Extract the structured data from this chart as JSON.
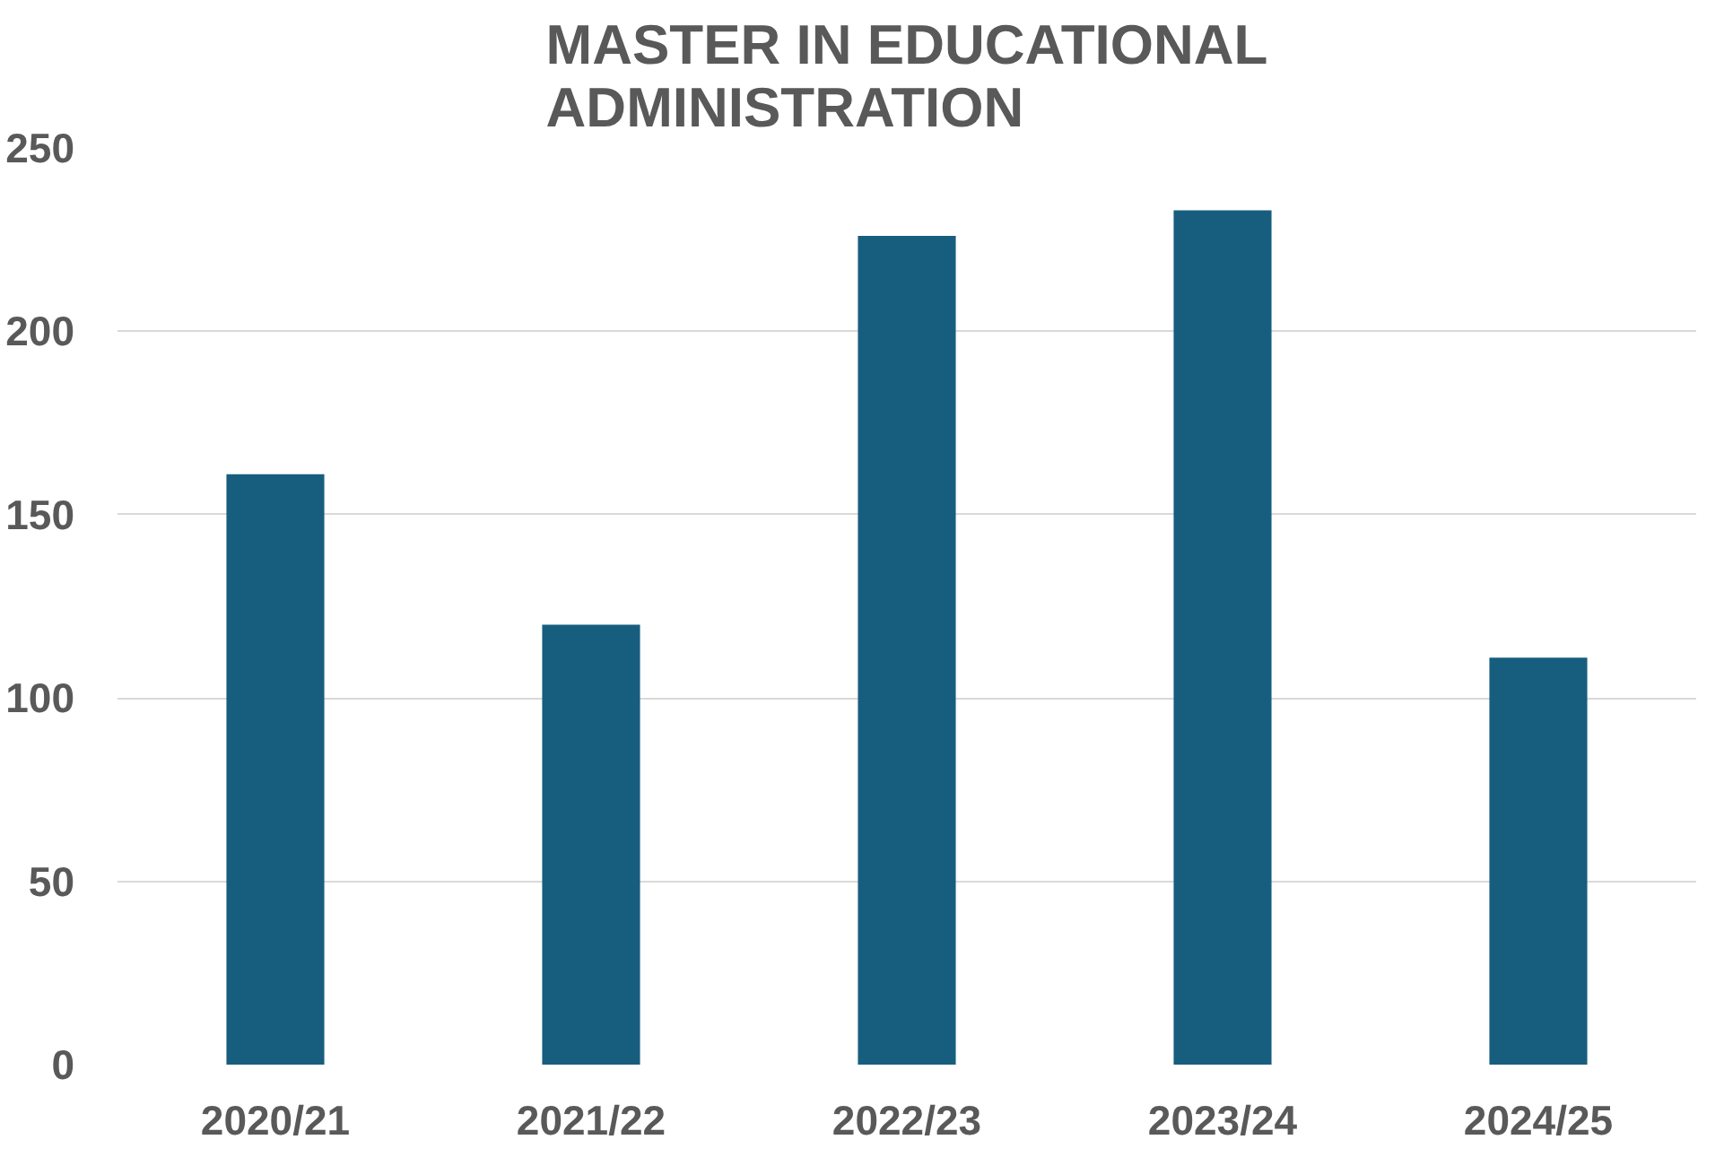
{
  "chart_data": {
    "type": "bar",
    "title": "MASTER IN EDUCATIONAL\nADMINISTRATION",
    "categories": [
      "2020/21",
      "2021/22",
      "2022/23",
      "2023/24",
      "2024/25"
    ],
    "values": [
      161,
      120,
      226,
      233,
      111
    ],
    "color": "#175e7e",
    "ylim": [
      0,
      250
    ],
    "yticks": [
      0,
      50,
      100,
      150,
      200,
      250
    ],
    "grid": "y"
  }
}
